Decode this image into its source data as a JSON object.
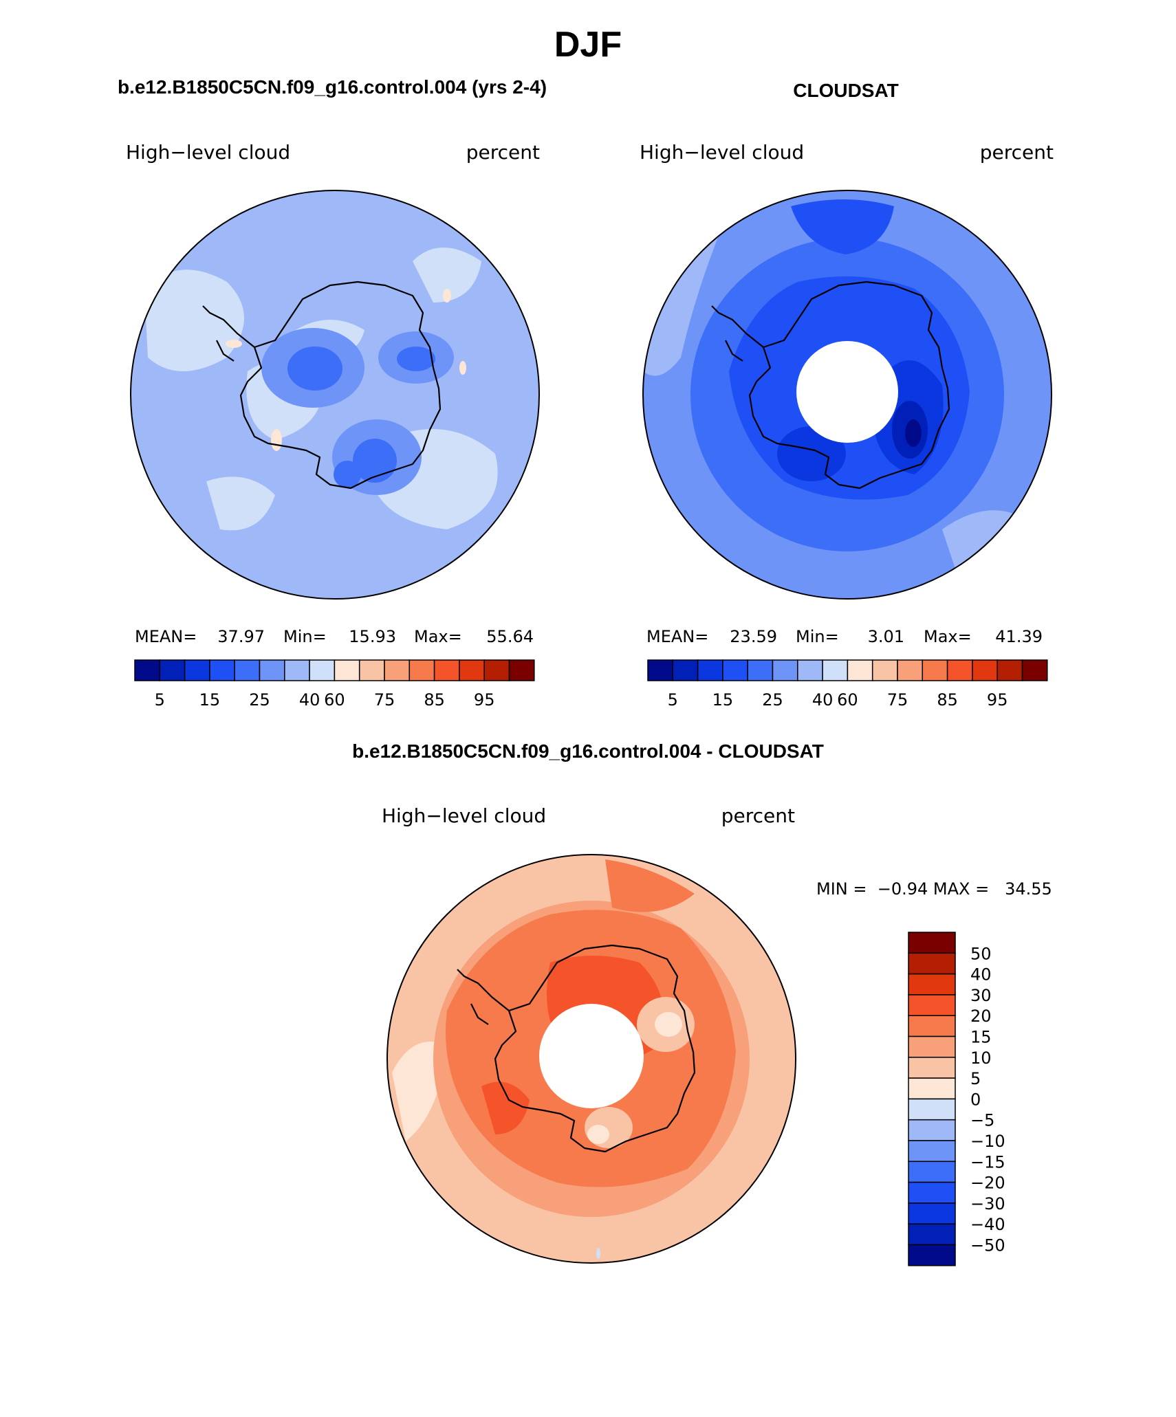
{
  "page": {
    "season": "DJF",
    "panel_left_title": "b.e12.B1850C5CN.f09_g16.control.004 (yrs 2-4)",
    "panel_right_title": "CLOUDSAT",
    "panel_bottom_title": "b.e12.B1850C5CN.f09_g16.control.004 - CLOUDSAT"
  },
  "panels": {
    "model": {
      "left_label": "High−level cloud",
      "right_label": "percent",
      "stats": {
        "mean_label": "MEAN=",
        "mean": "37.97",
        "min_label": "Min=",
        "min": "15.93",
        "max_label": "Max=",
        "max": "55.64"
      }
    },
    "obs": {
      "left_label": "High−level cloud",
      "right_label": "percent",
      "stats": {
        "mean_label": "MEAN=",
        "mean": "23.59",
        "min_label": "Min=",
        "min": "3.01",
        "max_label": "Max=",
        "max": "41.39"
      }
    },
    "diff": {
      "left_label": "High−level cloud",
      "right_label": "percent",
      "minmax": "MIN =  −0.94 MAX =   34.55"
    }
  },
  "colorbars": {
    "abs": {
      "colors": [
        "#000a8a",
        "#0020b8",
        "#0a37e0",
        "#1e50f5",
        "#3c6ef8",
        "#6f94f8",
        "#9fb9f8",
        "#cfe0f8",
        "#fde6d6",
        "#f9c4a6",
        "#f7a07a",
        "#f67a4c",
        "#f5542a",
        "#e2380f",
        "#b41f04",
        "#7a0000"
      ],
      "tick_labels": [
        "5",
        "15",
        "25",
        "40",
        "60",
        "75",
        "85",
        "95"
      ]
    },
    "diff": {
      "colors": [
        "#7a0000",
        "#b41f04",
        "#e2380f",
        "#f5542a",
        "#f67a4c",
        "#f7a07a",
        "#f9c4a6",
        "#fde6d6",
        "#cfe0f8",
        "#9fb9f8",
        "#6f94f8",
        "#3c6ef8",
        "#1e50f5",
        "#0a37e0",
        "#0020b8",
        "#000a8a"
      ],
      "tick_labels": [
        "50",
        "40",
        "30",
        "20",
        "15",
        "10",
        "5",
        "0",
        "−5",
        "−10",
        "−15",
        "−20",
        "−30",
        "−40",
        "−50"
      ]
    }
  }
}
